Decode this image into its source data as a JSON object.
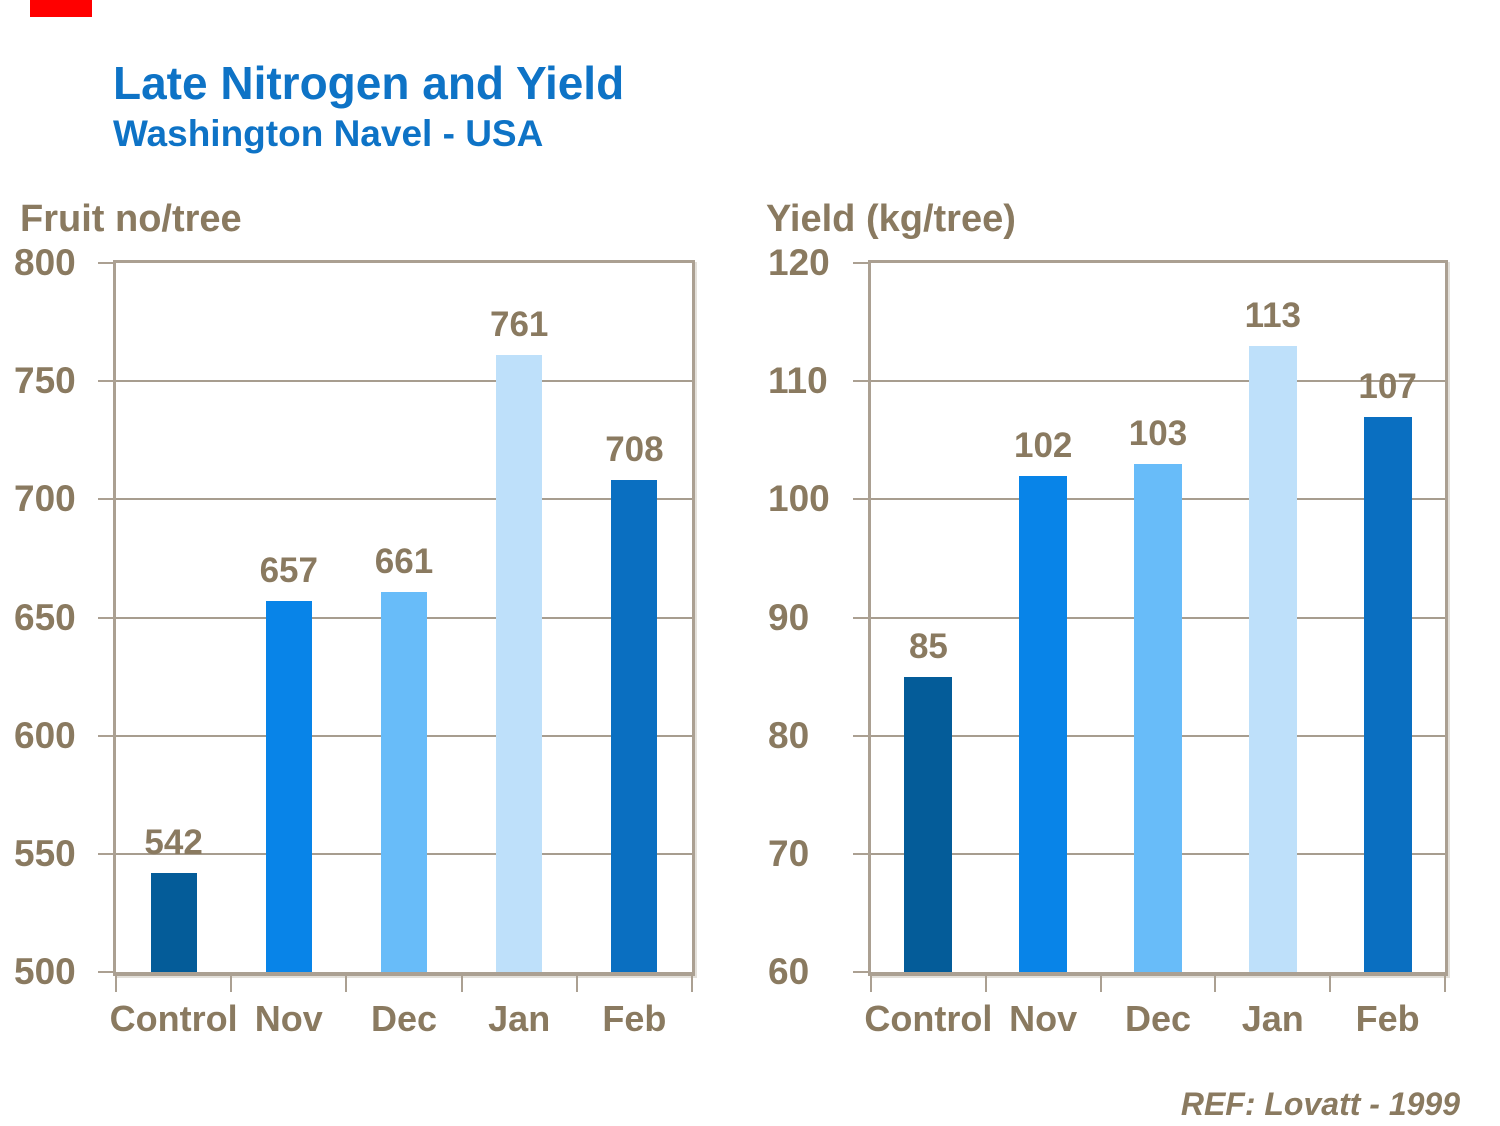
{
  "page": {
    "title": "Late Nitrogen and Yield",
    "subtitle": "Washington Navel - USA",
    "reference": "REF: Lovatt - 1999"
  },
  "colors": {
    "title_blue": "#0e73c6",
    "text_brown": "#8a7a60",
    "gridline": "#a79d8f",
    "frame": "#aba092",
    "accent_red": "#ff0000"
  },
  "chart_data": [
    {
      "type": "bar",
      "title": "Fruit no/tree",
      "categories": [
        "Control",
        "Nov",
        "Dec",
        "Jan",
        "Feb"
      ],
      "values": [
        542,
        657,
        661,
        761,
        708
      ],
      "ylim": [
        500,
        800
      ],
      "yticks": [
        500,
        550,
        600,
        650,
        700,
        750,
        800
      ],
      "xlabel": "",
      "ylabel": "Fruit no/tree",
      "grid": true,
      "legend": "none",
      "bar_colors": [
        "#045c99",
        "#0884e8",
        "#68bcf9",
        "#bee0fa",
        "#0a6fc1"
      ]
    },
    {
      "type": "bar",
      "title": "Yield (kg/tree)",
      "categories": [
        "Control",
        "Nov",
        "Dec",
        "Jan",
        "Feb"
      ],
      "values": [
        85,
        102,
        103,
        113,
        107
      ],
      "ylim": [
        60,
        120
      ],
      "yticks": [
        60,
        70,
        80,
        90,
        100,
        110,
        120
      ],
      "xlabel": "",
      "ylabel": "Yield (kg/tree)",
      "grid": true,
      "legend": "none",
      "bar_colors": [
        "#045c99",
        "#0884e8",
        "#68bcf9",
        "#bee0fa",
        "#0a6fc1"
      ]
    }
  ]
}
